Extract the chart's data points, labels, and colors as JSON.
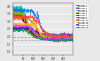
{
  "xlim": [
    0,
    300
  ],
  "ylim": [
    0.8,
    4.2
  ],
  "yticks": [
    1.0,
    1.5,
    2.0,
    2.5,
    3.0,
    3.5,
    4.0
  ],
  "xticks": [
    50,
    100,
    150,
    200,
    250
  ],
  "background_color": "#e8e8e8",
  "plot_bg": "#e8e8e8",
  "grid_color": "#ffffff",
  "sensors": [
    {
      "id": "sensor 1",
      "color": "#ff0000",
      "start": 3.5,
      "drop_t": 45,
      "end": 2.0,
      "noise": 0.08
    },
    {
      "id": "sensor 2",
      "color": "#ff8000",
      "start": 3.2,
      "drop_t": 100,
      "end": 1.85,
      "noise": 0.06
    },
    {
      "id": "sensor 3",
      "color": "#c000c0",
      "start": 3.8,
      "drop_t": 50,
      "end": 2.1,
      "noise": 0.07
    },
    {
      "id": "sensor 4",
      "color": "#00c0c0",
      "start": 3.9,
      "drop_t": 55,
      "end": 2.05,
      "noise": 0.06
    },
    {
      "id": "sensor 5",
      "color": "#c0c000",
      "start": 3.6,
      "drop_t": 48,
      "end": 1.95,
      "noise": 0.05
    },
    {
      "id": "sensor 6",
      "color": "#800000",
      "start": 3.4,
      "drop_t": 52,
      "end": 2.0,
      "noise": 0.06
    },
    {
      "id": "sensor 7",
      "color": "#800080",
      "start": 2.5,
      "drop_t": 115,
      "end": 1.75,
      "noise": 0.05
    },
    {
      "id": "sensor 8",
      "color": "#0080ff",
      "start": 3.7,
      "drop_t": 120,
      "end": 1.9,
      "noise": 0.06
    },
    {
      "id": "sensor 9",
      "color": "#80c000",
      "start": 3.5,
      "drop_t": 60,
      "end": 2.0,
      "noise": 0.05
    },
    {
      "id": "sensor 10",
      "color": "#ff4040",
      "start": 3.3,
      "drop_t": 120,
      "end": 2.0,
      "noise": 0.06
    },
    {
      "id": "sensor 11",
      "color": "#ffc000",
      "start": 2.8,
      "drop_t": 115,
      "end": 1.8,
      "noise": 0.05
    },
    {
      "id": "sensor 12",
      "color": "#0040c0",
      "start": 2.6,
      "drop_t": 95,
      "end": 1.8,
      "noise": 0.05
    },
    {
      "id": "sensor 13",
      "color": "#ff40ff",
      "start": 2.7,
      "drop_t": 90,
      "end": 1.8,
      "noise": 0.05
    },
    {
      "id": "sensor 14",
      "color": "#00a040",
      "start": 2.4,
      "drop_t": 80,
      "end": 1.78,
      "noise": 0.04
    }
  ],
  "hline_2m": {
    "y": 2.0,
    "color": "#888888",
    "lw": 0.5,
    "ls": "--"
  },
  "hline_18m": {
    "y": 1.8,
    "color": "#aaaaaa",
    "lw": 0.5,
    "ls": "--"
  }
}
